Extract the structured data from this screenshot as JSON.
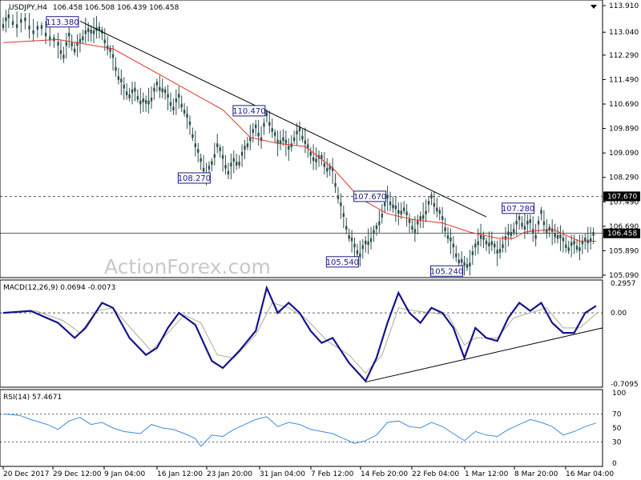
{
  "header": {
    "symbol": "USDJPY,H4",
    "ohlc": "106.458 106.508 106.439 106.458",
    "macd": "MACD(12,26,9) 0.0694 -0.0073",
    "rsi": "RSI(14) 57.4671"
  },
  "watermark": "ActionForex.com",
  "colors": {
    "price": "#2f4f4f",
    "ma": "#e0342a",
    "macd_main": "#14148c",
    "macd_signal": "#b0a890",
    "rsi": "#3c8ce0",
    "trend": "#000000",
    "price_tag_bg": "#000000"
  },
  "chart_data": [
    {
      "type": "candlestick",
      "name": "USDJPY H4",
      "ylim": [
        105.09,
        113.91
      ],
      "y_ticks": [
        "113.910",
        "113.040",
        "112.290",
        "111.490",
        "110.690",
        "109.890",
        "109.090",
        "108.290",
        "107.490",
        "106.690",
        "105.890",
        "105.090"
      ],
      "x_ticks": [
        "20 Dec 2017",
        "29 Dec 12:00",
        "9 Jan 04:00",
        "16 Jan 12:00",
        "23 Jan 20:00",
        "31 Jan 04:00",
        "7 Feb 12:00",
        "14 Feb 20:00",
        "22 Feb 04:00",
        "1 Mar 12:00",
        "8 Mar 20:00",
        "16 Mar 04:00"
      ],
      "close_points": [
        [
          0,
          113.3
        ],
        [
          2,
          113.5
        ],
        [
          5,
          113.3
        ],
        [
          8,
          113.4
        ],
        [
          11,
          113.1
        ],
        [
          14,
          113.15
        ],
        [
          17,
          112.9
        ],
        [
          20,
          112.6
        ],
        [
          22,
          112.3
        ],
        [
          24,
          112.9
        ],
        [
          26,
          112.5
        ],
        [
          28,
          112.7
        ],
        [
          30,
          113.1
        ],
        [
          32,
          113.0
        ],
        [
          34,
          113.2
        ],
        [
          36,
          113.0
        ],
        [
          38,
          112.6
        ],
        [
          40,
          112.2
        ],
        [
          42,
          111.6
        ],
        [
          44,
          111.2
        ],
        [
          46,
          111.0
        ],
        [
          48,
          111.1
        ],
        [
          50,
          110.8
        ],
        [
          52,
          110.7
        ],
        [
          54,
          110.9
        ],
        [
          56,
          111.3
        ],
        [
          58,
          111.2
        ],
        [
          60,
          110.9
        ],
        [
          62,
          110.6
        ],
        [
          64,
          110.9
        ],
        [
          66,
          110.5
        ],
        [
          68,
          110.0
        ],
        [
          70,
          109.4
        ],
        [
          72,
          108.8
        ],
        [
          74,
          108.4
        ],
        [
          76,
          108.7
        ],
        [
          78,
          109.4
        ],
        [
          80,
          108.9
        ],
        [
          82,
          108.5
        ],
        [
          84,
          108.8
        ],
        [
          86,
          108.8
        ],
        [
          88,
          109.2
        ],
        [
          90,
          109.6
        ],
        [
          92,
          109.9
        ],
        [
          94,
          109.6
        ],
        [
          96,
          110.3
        ],
        [
          98,
          109.9
        ],
        [
          100,
          109.4
        ],
        [
          102,
          109.6
        ],
        [
          104,
          109.2
        ],
        [
          106,
          109.6
        ],
        [
          108,
          109.8
        ],
        [
          110,
          109.5
        ],
        [
          112,
          109.0
        ],
        [
          114,
          108.9
        ],
        [
          116,
          108.9
        ],
        [
          118,
          108.6
        ],
        [
          120,
          108.5
        ],
        [
          122,
          107.7
        ],
        [
          124,
          107.0
        ],
        [
          126,
          106.4
        ],
        [
          128,
          106.0
        ],
        [
          130,
          105.8
        ],
        [
          132,
          106.1
        ],
        [
          134,
          106.3
        ],
        [
          136,
          106.6
        ],
        [
          138,
          107.1
        ],
        [
          140,
          107.6
        ],
        [
          142,
          107.4
        ],
        [
          144,
          107.1
        ],
        [
          146,
          107.3
        ],
        [
          148,
          106.8
        ],
        [
          150,
          106.6
        ],
        [
          152,
          106.9
        ],
        [
          154,
          107.2
        ],
        [
          156,
          107.6
        ],
        [
          158,
          107.3
        ],
        [
          160,
          106.9
        ],
        [
          162,
          106.4
        ],
        [
          164,
          106.0
        ],
        [
          166,
          105.6
        ],
        [
          168,
          105.4
        ],
        [
          170,
          105.5
        ],
        [
          172,
          106.0
        ],
        [
          174,
          106.4
        ],
        [
          176,
          106.1
        ],
        [
          178,
          106.2
        ],
        [
          180,
          105.8
        ],
        [
          182,
          106.1
        ],
        [
          184,
          106.4
        ],
        [
          186,
          106.6
        ],
        [
          188,
          106.9
        ],
        [
          190,
          106.7
        ],
        [
          192,
          106.8
        ],
        [
          194,
          106.4
        ],
        [
          196,
          107.1
        ],
        [
          198,
          106.6
        ],
        [
          200,
          106.5
        ],
        [
          202,
          106.4
        ],
        [
          204,
          106.2
        ],
        [
          206,
          106.0
        ],
        [
          208,
          106.1
        ],
        [
          210,
          106.0
        ],
        [
          212,
          106.2
        ],
        [
          214,
          106.3
        ],
        [
          216,
          106.46
        ]
      ],
      "moving_average": [
        [
          0,
          112.7
        ],
        [
          20,
          112.8
        ],
        [
          40,
          112.5
        ],
        [
          60,
          111.5
        ],
        [
          80,
          110.5
        ],
        [
          90,
          109.6
        ],
        [
          100,
          109.4
        ],
        [
          110,
          109.3
        ],
        [
          120,
          108.6
        ],
        [
          130,
          107.6
        ],
        [
          140,
          107.1
        ],
        [
          150,
          106.9
        ],
        [
          160,
          106.8
        ],
        [
          170,
          106.5
        ],
        [
          180,
          106.3
        ],
        [
          186,
          106.3
        ],
        [
          190,
          106.5
        ],
        [
          200,
          106.6
        ],
        [
          210,
          106.2
        ],
        [
          216,
          106.2
        ]
      ],
      "labels": [
        {
          "text": "113.380",
          "x": 28,
          "y": 113.38
        },
        {
          "text": "110.470",
          "x": 96,
          "y": 110.47
        },
        {
          "text": "108.270",
          "x": 76,
          "y": 108.27
        },
        {
          "text": "107.670",
          "x": 140,
          "y": 107.67
        },
        {
          "text": "105.540",
          "x": 130,
          "y": 105.54
        },
        {
          "text": "105.240",
          "x": 168,
          "y": 105.24
        },
        {
          "text": "107.280",
          "x": 194,
          "y": 107.28
        }
      ],
      "hlines": [
        {
          "y": 107.67,
          "label": "107.670",
          "style": "dashed"
        },
        {
          "y": 106.458,
          "label": "106.458",
          "style": "solid"
        }
      ],
      "trendline": [
        [
          28,
          113.4
        ],
        [
          176,
          107.0
        ]
      ]
    },
    {
      "type": "line",
      "name": "MACD(12,26,9)",
      "ylim": [
        -0.7095,
        0.2957
      ],
      "y_ticks": [
        "0.2957",
        "0.00",
        "-0.7095"
      ],
      "zero_line": 0.0,
      "series": [
        {
          "role": "main",
          "points": [
            [
              0,
              0.0
            ],
            [
              10,
              0.02
            ],
            [
              20,
              -0.1
            ],
            [
              26,
              -0.25
            ],
            [
              30,
              -0.15
            ],
            [
              36,
              0.1
            ],
            [
              40,
              0.05
            ],
            [
              46,
              -0.25
            ],
            [
              52,
              -0.42
            ],
            [
              56,
              -0.35
            ],
            [
              60,
              -0.15
            ],
            [
              64,
              0.0
            ],
            [
              70,
              -0.12
            ],
            [
              76,
              -0.48
            ],
            [
              80,
              -0.55
            ],
            [
              86,
              -0.38
            ],
            [
              92,
              -0.18
            ],
            [
              96,
              0.25
            ],
            [
              100,
              0.0
            ],
            [
              104,
              0.1
            ],
            [
              108,
              0.0
            ],
            [
              112,
              -0.18
            ],
            [
              116,
              -0.3
            ],
            [
              120,
              -0.25
            ],
            [
              126,
              -0.5
            ],
            [
              130,
              -0.62
            ],
            [
              132,
              -0.68
            ],
            [
              136,
              -0.45
            ],
            [
              140,
              -0.1
            ],
            [
              144,
              0.2
            ],
            [
              148,
              0.0
            ],
            [
              152,
              -0.1
            ],
            [
              156,
              0.05
            ],
            [
              160,
              0.0
            ],
            [
              164,
              -0.15
            ],
            [
              168,
              -0.45
            ],
            [
              172,
              -0.15
            ],
            [
              176,
              -0.25
            ],
            [
              180,
              -0.28
            ],
            [
              184,
              -0.05
            ],
            [
              188,
              0.1
            ],
            [
              192,
              0.02
            ],
            [
              196,
              0.1
            ],
            [
              200,
              -0.1
            ],
            [
              204,
              -0.2
            ],
            [
              208,
              -0.2
            ],
            [
              212,
              0.0
            ],
            [
              216,
              0.07
            ]
          ]
        },
        {
          "role": "signal",
          "points": [
            [
              0,
              0.0
            ],
            [
              12,
              0.02
            ],
            [
              22,
              -0.08
            ],
            [
              28,
              -0.2
            ],
            [
              34,
              0.02
            ],
            [
              40,
              0.05
            ],
            [
              48,
              -0.2
            ],
            [
              54,
              -0.38
            ],
            [
              60,
              -0.2
            ],
            [
              66,
              -0.02
            ],
            [
              72,
              -0.1
            ],
            [
              78,
              -0.42
            ],
            [
              84,
              -0.45
            ],
            [
              92,
              -0.22
            ],
            [
              98,
              0.1
            ],
            [
              104,
              0.05
            ],
            [
              110,
              -0.05
            ],
            [
              118,
              -0.28
            ],
            [
              126,
              -0.42
            ],
            [
              132,
              -0.6
            ],
            [
              138,
              -0.42
            ],
            [
              144,
              0.05
            ],
            [
              150,
              0.02
            ],
            [
              156,
              0.0
            ],
            [
              162,
              -0.02
            ],
            [
              168,
              -0.32
            ],
            [
              172,
              -0.25
            ],
            [
              180,
              -0.25
            ],
            [
              186,
              -0.05
            ],
            [
              192,
              0.0
            ],
            [
              198,
              0.05
            ],
            [
              204,
              -0.15
            ],
            [
              210,
              -0.15
            ],
            [
              216,
              -0.01
            ]
          ]
        }
      ],
      "trendline": [
        [
          132,
          -0.69
        ],
        [
          220,
          -0.15
        ]
      ]
    },
    {
      "type": "line",
      "name": "RSI(14)",
      "ylim": [
        0,
        100
      ],
      "y_ticks": [
        "100",
        "70",
        "50",
        "30",
        "0"
      ],
      "levels": [
        70,
        30
      ],
      "series": [
        {
          "role": "rsi",
          "points": [
            [
              0,
              70
            ],
            [
              6,
              68
            ],
            [
              10,
              62
            ],
            [
              16,
              55
            ],
            [
              20,
              48
            ],
            [
              24,
              60
            ],
            [
              28,
              65
            ],
            [
              32,
              55
            ],
            [
              36,
              58
            ],
            [
              40,
              50
            ],
            [
              44,
              45
            ],
            [
              50,
              42
            ],
            [
              54,
              55
            ],
            [
              58,
              50
            ],
            [
              62,
              48
            ],
            [
              66,
              42
            ],
            [
              70,
              35
            ],
            [
              72,
              24
            ],
            [
              76,
              40
            ],
            [
              80,
              38
            ],
            [
              84,
              48
            ],
            [
              88,
              55
            ],
            [
              92,
              62
            ],
            [
              96,
              66
            ],
            [
              100,
              52
            ],
            [
              104,
              58
            ],
            [
              108,
              55
            ],
            [
              112,
              48
            ],
            [
              116,
              45
            ],
            [
              120,
              42
            ],
            [
              124,
              35
            ],
            [
              128,
              28
            ],
            [
              132,
              32
            ],
            [
              136,
              40
            ],
            [
              140,
              58
            ],
            [
              144,
              60
            ],
            [
              148,
              52
            ],
            [
              152,
              50
            ],
            [
              156,
              58
            ],
            [
              160,
              52
            ],
            [
              164,
              42
            ],
            [
              168,
              32
            ],
            [
              172,
              45
            ],
            [
              176,
              40
            ],
            [
              180,
              38
            ],
            [
              184,
              48
            ],
            [
              188,
              55
            ],
            [
              192,
              62
            ],
            [
              196,
              58
            ],
            [
              200,
              52
            ],
            [
              204,
              40
            ],
            [
              208,
              45
            ],
            [
              212,
              52
            ],
            [
              216,
              57
            ]
          ]
        }
      ]
    }
  ]
}
